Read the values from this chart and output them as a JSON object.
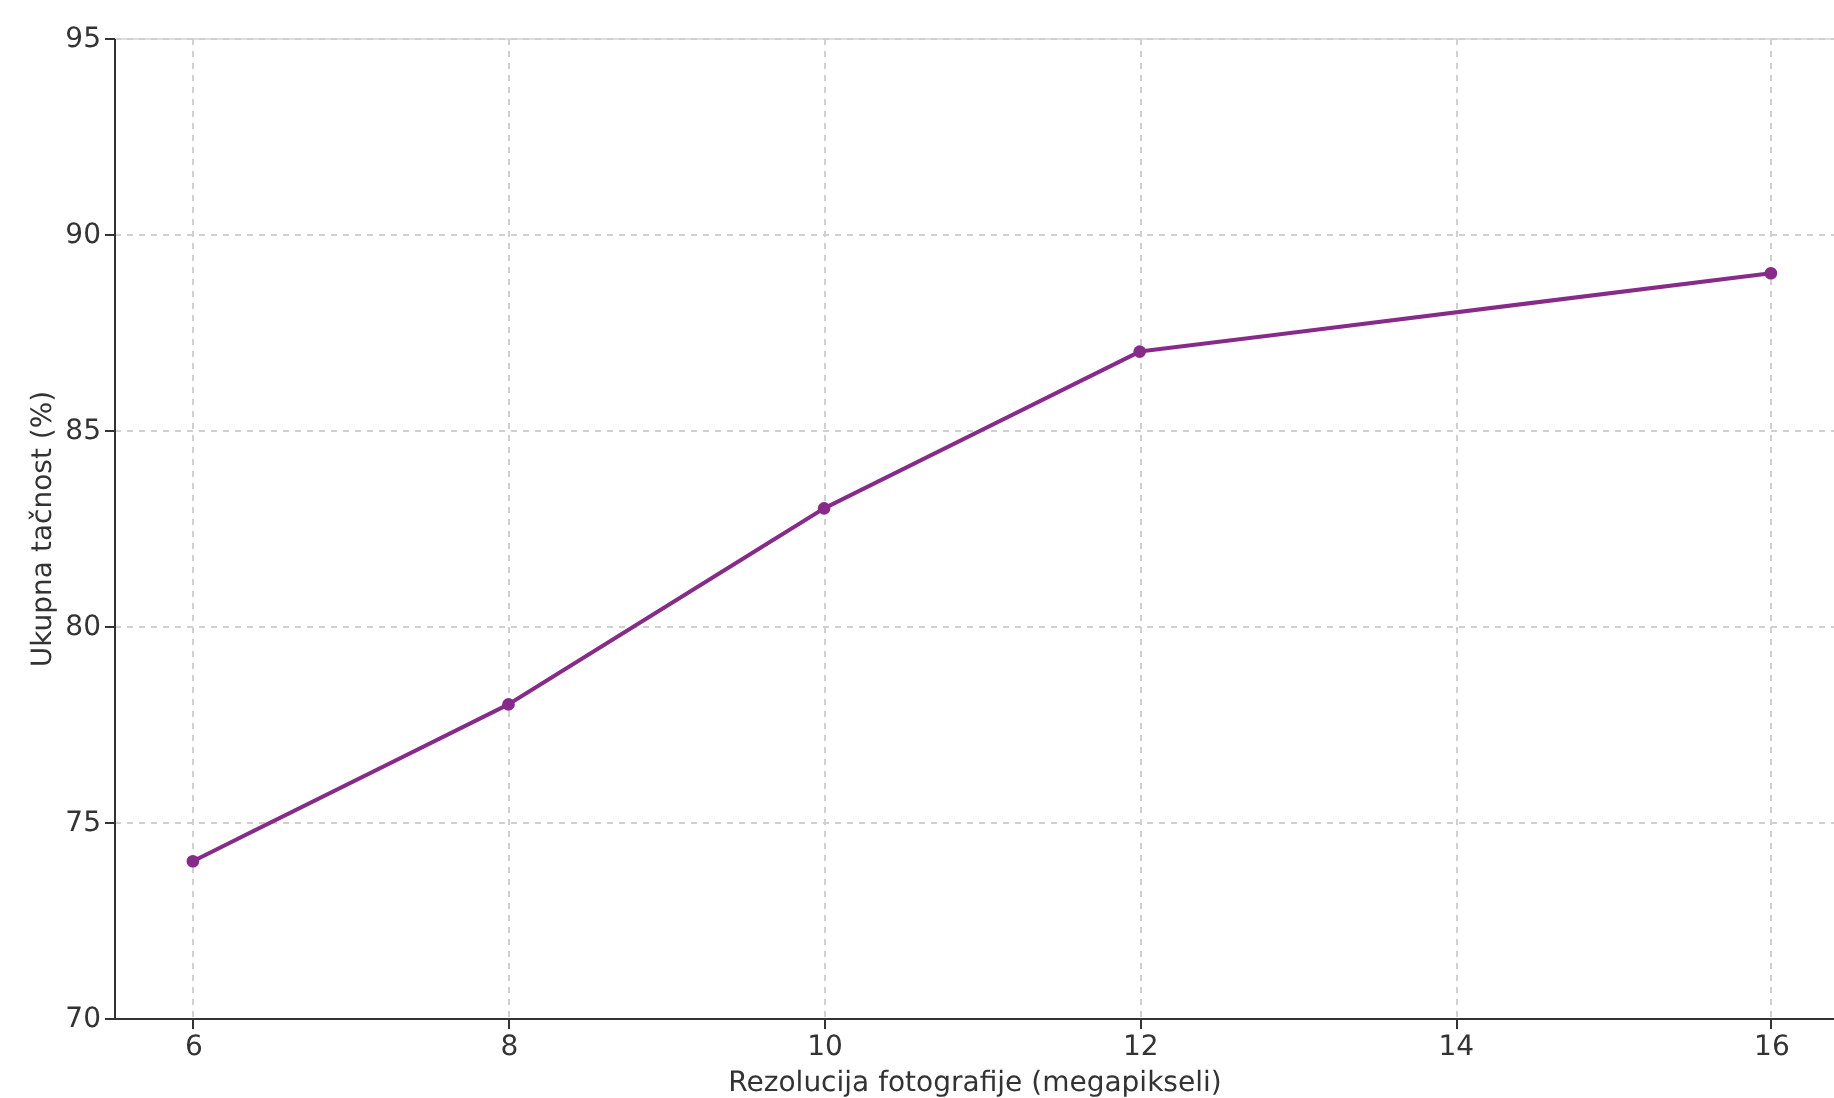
{
  "chart_data": {
    "type": "line",
    "xlabel": "Rezolucija fotografije (megapikseli)",
    "ylabel": "Ukupna tačnost (%)",
    "x": [
      6,
      8,
      10,
      12,
      16
    ],
    "series": [
      {
        "color": "#882a8a",
        "values": [
          74,
          78,
          83,
          87,
          89
        ]
      }
    ],
    "xlim": [
      5.5,
      16.4
    ],
    "xticks": [
      6,
      8,
      10,
      12,
      14,
      16
    ],
    "ylim": [
      70,
      95
    ],
    "yticks": [
      70,
      75,
      80,
      85,
      90,
      95
    ],
    "grid": true,
    "marker": "circle",
    "line_style": "solid"
  }
}
